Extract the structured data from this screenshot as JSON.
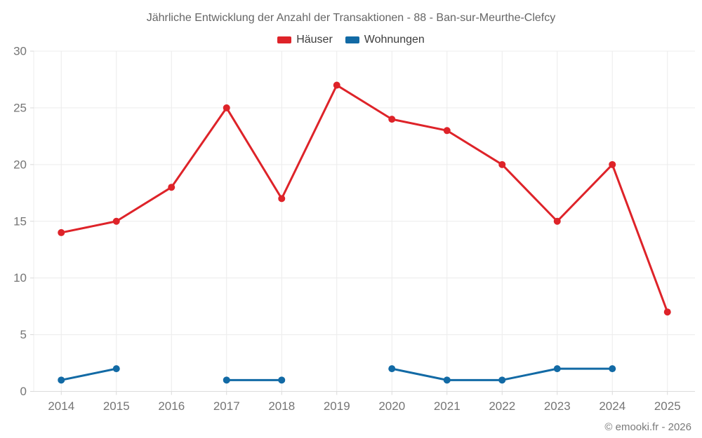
{
  "title": "Jährliche Entwicklung der Anzahl der Transaktionen - 88 - Ban-sur-Meurthe-Clefcy",
  "footer": "© emooki.fr - 2026",
  "legend": [
    {
      "label": "Häuser",
      "color": "#de2329"
    },
    {
      "label": "Wohnungen",
      "color": "#126aa5"
    }
  ],
  "colors": {
    "grid_line": "#ececec",
    "axis_line": "#dcdcdc",
    "tick": "#d9d9d9",
    "axis_label": "#757575",
    "title_text": "#666666",
    "legend_text": "#3d3d3d",
    "footer_text": "#7a7a7a"
  },
  "chart_data": {
    "type": "line",
    "title": "Jährliche Entwicklung der Anzahl der Transaktionen - 88 - Ban-sur-Meurthe-Clefcy",
    "categories": [
      "2014",
      "2015",
      "2016",
      "2017",
      "2018",
      "2019",
      "2020",
      "2021",
      "2022",
      "2023",
      "2024",
      "2025"
    ],
    "series": [
      {
        "name": "Häuser",
        "color": "#de2329",
        "values": [
          14,
          15,
          18,
          25,
          17,
          27,
          24,
          23,
          20,
          15,
          20,
          7
        ]
      },
      {
        "name": "Wohnungen",
        "color": "#126aa5",
        "values": [
          1,
          2,
          null,
          1,
          1,
          null,
          2,
          1,
          1,
          2,
          2,
          null
        ]
      }
    ],
    "xlabel": "",
    "ylabel": "",
    "ylim": [
      0,
      30
    ],
    "yticks": [
      0,
      5,
      10,
      15,
      20,
      25,
      30
    ],
    "grid": true,
    "legend_position": "top"
  }
}
